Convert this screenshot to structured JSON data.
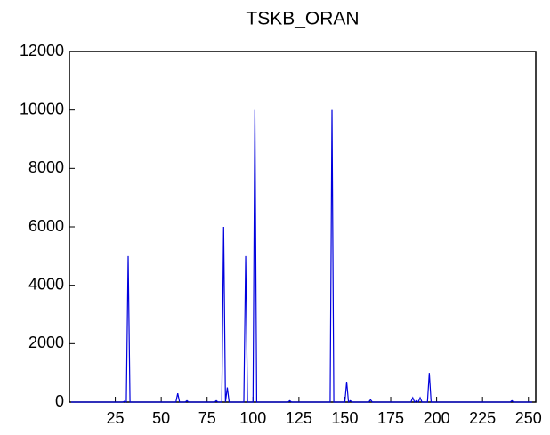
{
  "chart_data": {
    "type": "line",
    "title": "TSKB_ORAN",
    "x": [
      1,
      2,
      3,
      4,
      5,
      6,
      7,
      8,
      9,
      10,
      11,
      12,
      13,
      14,
      15,
      16,
      17,
      18,
      19,
      20,
      21,
      22,
      23,
      24,
      25,
      26,
      27,
      28,
      29,
      30,
      31,
      32,
      33,
      34,
      35,
      36,
      37,
      38,
      39,
      40,
      41,
      42,
      43,
      44,
      45,
      46,
      47,
      48,
      49,
      50,
      51,
      52,
      53,
      54,
      55,
      56,
      57,
      58,
      59,
      60,
      61,
      62,
      63,
      64,
      65,
      66,
      67,
      68,
      69,
      70,
      71,
      72,
      73,
      74,
      75,
      76,
      77,
      78,
      79,
      80,
      81,
      82,
      83,
      84,
      85,
      86,
      87,
      88,
      89,
      90,
      91,
      92,
      93,
      94,
      95,
      96,
      97,
      98,
      99,
      100,
      101,
      102,
      103,
      104,
      105,
      106,
      107,
      108,
      109,
      110,
      111,
      112,
      113,
      114,
      115,
      116,
      117,
      118,
      119,
      120,
      121,
      122,
      123,
      124,
      125,
      126,
      127,
      128,
      129,
      130,
      131,
      132,
      133,
      134,
      135,
      136,
      137,
      138,
      139,
      140,
      141,
      142,
      143,
      144,
      145,
      146,
      147,
      148,
      149,
      150,
      151,
      152,
      153,
      154,
      155,
      156,
      157,
      158,
      159,
      160,
      161,
      162,
      163,
      164,
      165,
      166,
      167,
      168,
      169,
      170,
      171,
      172,
      173,
      174,
      175,
      176,
      177,
      178,
      179,
      180,
      181,
      182,
      183,
      184,
      185,
      186,
      187,
      188,
      189,
      190,
      191,
      192,
      193,
      194,
      195,
      196,
      197,
      198,
      199,
      200,
      201,
      202,
      203,
      204,
      205,
      206,
      207,
      208,
      209,
      210,
      211,
      212,
      213,
      214,
      215,
      216,
      217,
      218,
      219,
      220,
      221,
      222,
      223,
      224,
      225,
      226,
      227,
      228,
      229,
      230,
      231,
      232,
      233,
      234,
      235,
      236,
      237,
      238,
      239,
      240,
      241,
      242,
      243,
      244,
      245,
      246,
      247,
      248,
      249,
      250,
      251,
      252
    ],
    "series": [
      {
        "name": "TSKB_ORAN",
        "color": "#0000dd",
        "values": [
          0,
          0,
          0,
          0,
          0,
          0,
          0,
          0,
          0,
          0,
          0,
          0,
          0,
          0,
          0,
          0,
          0,
          0,
          0,
          0,
          0,
          0,
          0,
          0,
          0,
          0,
          0,
          0,
          0,
          30,
          0,
          5000,
          0,
          0,
          0,
          0,
          0,
          0,
          0,
          0,
          0,
          0,
          0,
          0,
          0,
          0,
          0,
          0,
          0,
          0,
          0,
          0,
          0,
          0,
          0,
          0,
          0,
          0,
          300,
          0,
          0,
          0,
          0,
          50,
          0,
          0,
          0,
          0,
          0,
          0,
          0,
          0,
          0,
          0,
          0,
          0,
          0,
          0,
          0,
          50,
          0,
          0,
          0,
          6000,
          0,
          500,
          0,
          0,
          0,
          0,
          0,
          0,
          0,
          0,
          0,
          5000,
          0,
          0,
          0,
          0,
          10000,
          0,
          0,
          0,
          0,
          0,
          0,
          0,
          0,
          0,
          0,
          0,
          0,
          0,
          0,
          0,
          0,
          0,
          0,
          50,
          0,
          0,
          0,
          0,
          0,
          0,
          0,
          0,
          0,
          0,
          0,
          0,
          0,
          0,
          0,
          0,
          0,
          0,
          0,
          0,
          0,
          0,
          10000,
          0,
          0,
          0,
          0,
          0,
          0,
          0,
          700,
          0,
          50,
          0,
          0,
          0,
          0,
          0,
          0,
          0,
          0,
          0,
          0,
          80,
          0,
          0,
          0,
          0,
          0,
          0,
          0,
          0,
          0,
          0,
          0,
          0,
          0,
          0,
          0,
          0,
          0,
          0,
          0,
          0,
          0,
          0,
          150,
          0,
          50,
          0,
          150,
          0,
          0,
          0,
          0,
          1000,
          0,
          0,
          0,
          0,
          0,
          0,
          0,
          0,
          0,
          0,
          0,
          0,
          0,
          0,
          0,
          0,
          0,
          0,
          0,
          0,
          0,
          0,
          0,
          0,
          0,
          0,
          0,
          0,
          0,
          0,
          0,
          0,
          0,
          0,
          0,
          0,
          0,
          0,
          0,
          0,
          0,
          0,
          0,
          0,
          50,
          0,
          0,
          0,
          0,
          0,
          0,
          0,
          0,
          0,
          0,
          0
        ]
      }
    ],
    "xlim": [
      0,
      254
    ],
    "xticks": [
      25,
      50,
      75,
      100,
      125,
      150,
      175,
      200,
      225,
      250
    ],
    "ylim": [
      0,
      12000
    ],
    "yticks": [
      0,
      2000,
      4000,
      6000,
      8000,
      10000,
      12000
    ]
  }
}
